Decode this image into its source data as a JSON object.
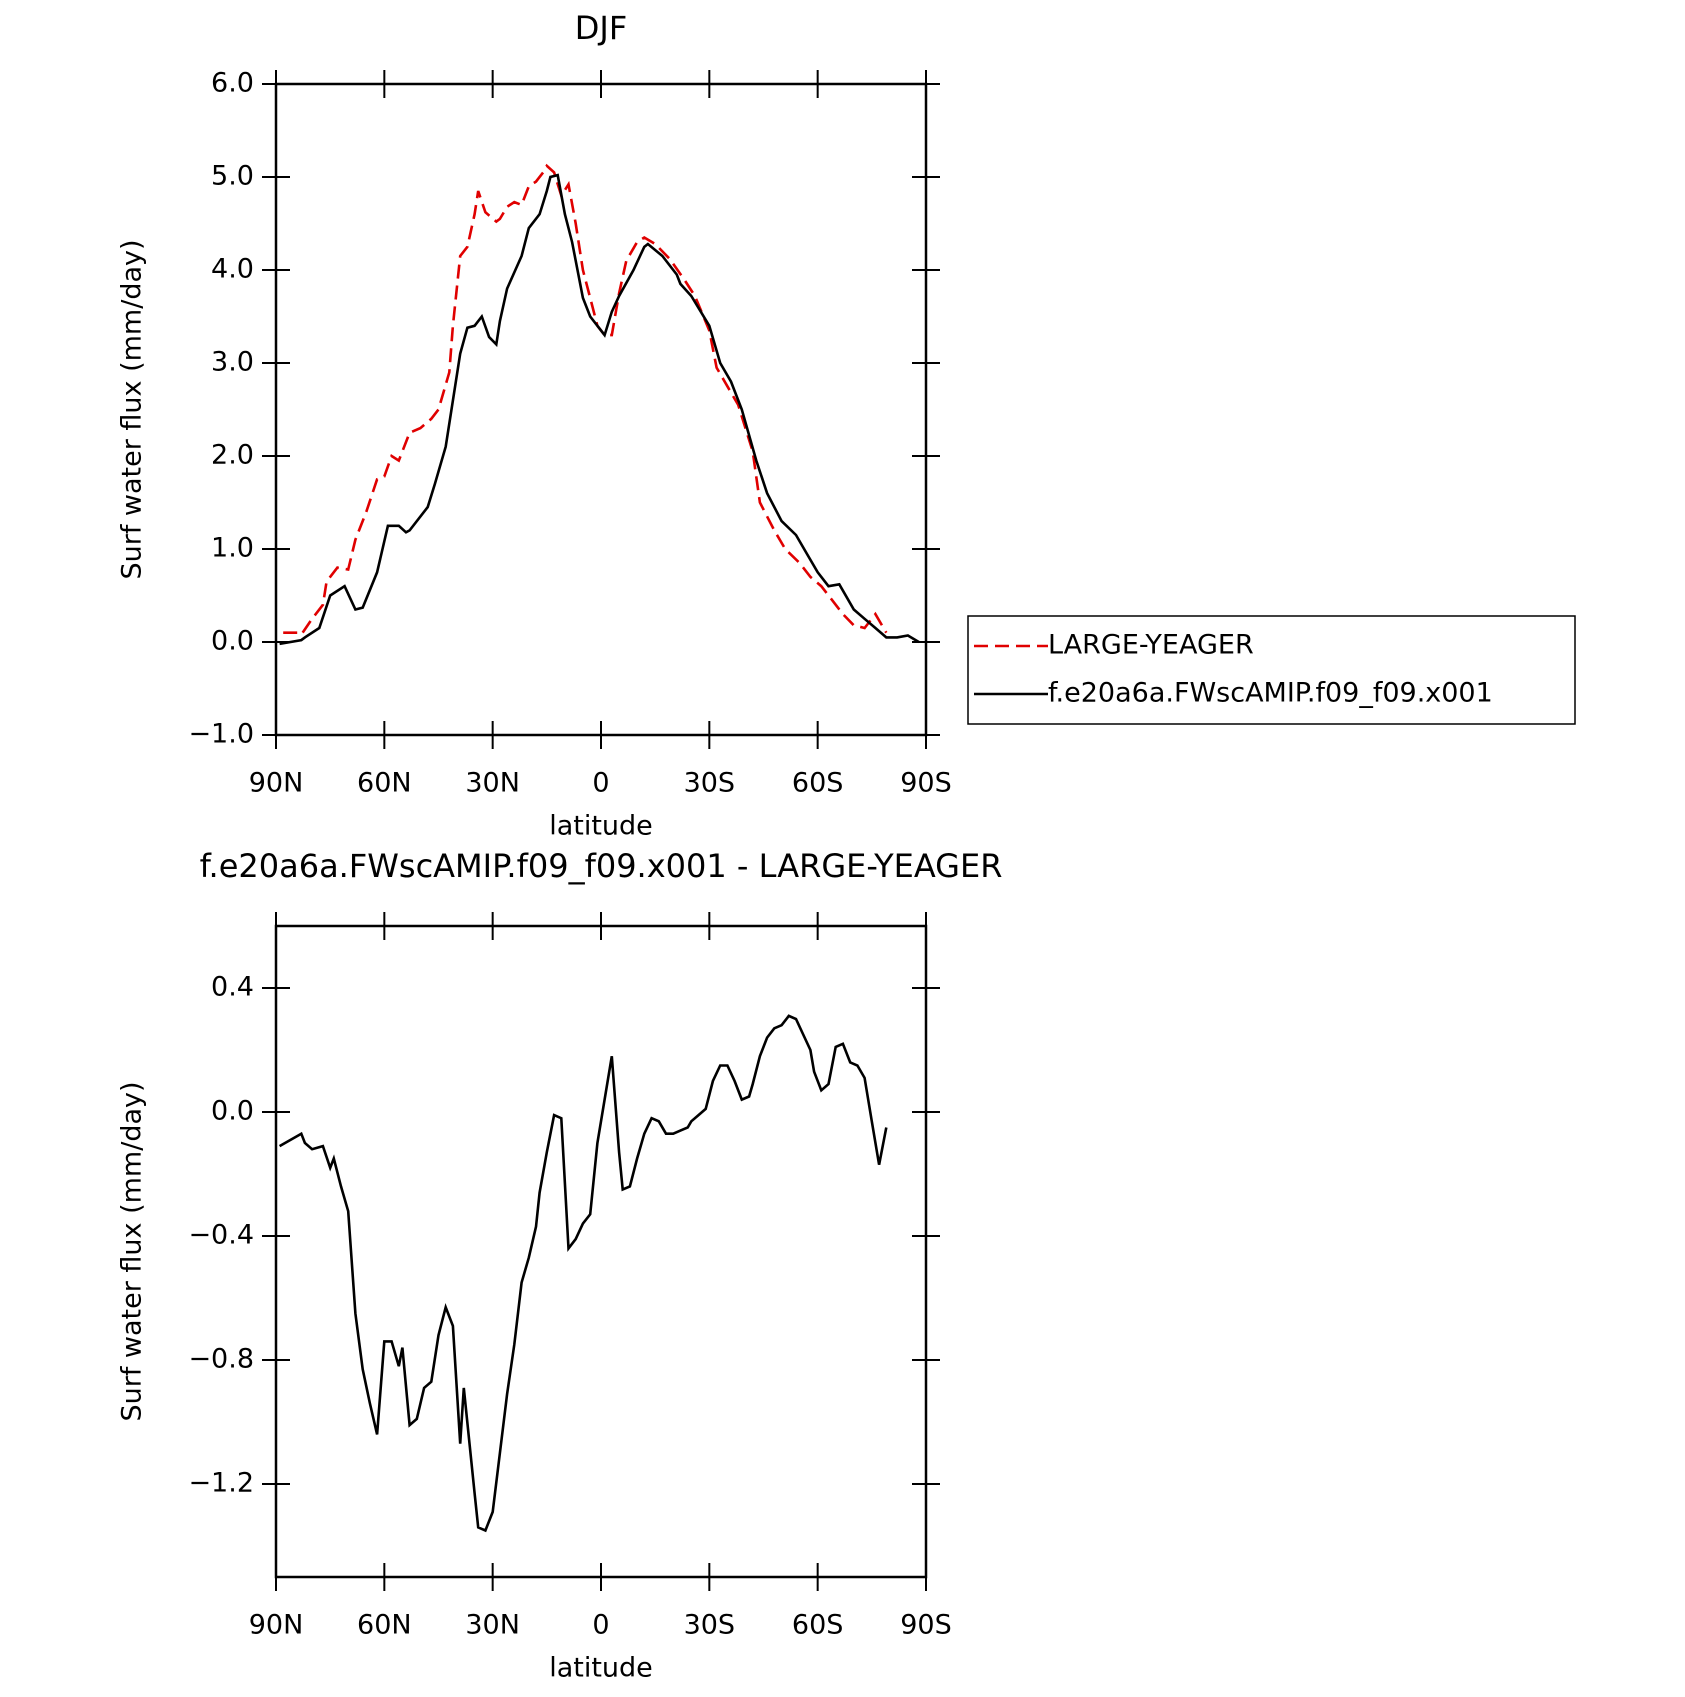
{
  "chart_data": [
    {
      "type": "line",
      "title": "DJF",
      "xlabel": "latitude",
      "ylabel": "Surf water flux (mm/day)",
      "xlim": [
        90,
        -90
      ],
      "xticks": [
        {
          "value": 90,
          "label": "90N"
        },
        {
          "value": 60,
          "label": "60N"
        },
        {
          "value": 30,
          "label": "30N"
        },
        0,
        {
          "value": -30,
          "label": "30S"
        },
        {
          "value": -60,
          "label": "60S"
        },
        {
          "value": -90,
          "label": "90S"
        }
      ],
      "ylim": [
        -1,
        6
      ],
      "yticks": [
        {
          "value": -1,
          "label": "−1.0"
        },
        {
          "value": 0,
          "label": "0.0"
        },
        {
          "value": 1,
          "label": "1.0"
        },
        {
          "value": 2,
          "label": "2.0"
        },
        {
          "value": 3,
          "label": "3.0"
        },
        {
          "value": 4,
          "label": "4.0"
        },
        {
          "value": 5,
          "label": "5.0"
        },
        {
          "value": 6,
          "label": "6.0"
        }
      ],
      "legend": "right",
      "series": [
        {
          "name": "LARGE-YEAGER",
          "color": "#e00000",
          "dash": true,
          "x": [
            88,
            84,
            83,
            80,
            77,
            76,
            73,
            70,
            68,
            65,
            62,
            60,
            58,
            56,
            53,
            50,
            47,
            45,
            42,
            41,
            39,
            37,
            35,
            34,
            32,
            29,
            28,
            26,
            24,
            22,
            20,
            18,
            16,
            15,
            13,
            11,
            9,
            7,
            5,
            3,
            1,
            -1,
            -3,
            -5,
            -7,
            -10,
            -12,
            -15,
            -19,
            -23,
            -26,
            -30,
            -32,
            -35,
            -38,
            -42,
            -44,
            -48,
            -51,
            -55,
            -58,
            -61,
            -64,
            -67,
            -70,
            -73,
            -76,
            -79
          ],
          "values": [
            0.1,
            0.1,
            0.08,
            0.25,
            0.4,
            0.65,
            0.8,
            0.78,
            1.1,
            1.4,
            1.75,
            1.78,
            2.0,
            1.95,
            2.25,
            2.3,
            2.4,
            2.5,
            2.9,
            3.4,
            4.15,
            4.25,
            4.6,
            4.85,
            4.62,
            4.52,
            4.55,
            4.68,
            4.73,
            4.7,
            4.9,
            4.95,
            5.05,
            5.12,
            5.05,
            4.8,
            4.92,
            4.5,
            4.0,
            3.7,
            3.4,
            3.3,
            3.3,
            3.75,
            4.1,
            4.3,
            4.35,
            4.28,
            4.12,
            3.9,
            3.72,
            3.35,
            2.95,
            2.75,
            2.55,
            2.05,
            1.5,
            1.2,
            1.0,
            0.85,
            0.7,
            0.6,
            0.45,
            0.3,
            0.18,
            0.15,
            0.3,
            0.1
          ]
        },
        {
          "name": "f.e20a6a.FWscAMIP.f09_f09.x001",
          "color": "#000000",
          "dash": false,
          "x": [
            89,
            83,
            82,
            78,
            75,
            71,
            68,
            66,
            62,
            59,
            56,
            54,
            53,
            48,
            46,
            43,
            39,
            37,
            35,
            33,
            31,
            29,
            28,
            26,
            22,
            20,
            17,
            15,
            14,
            12,
            10,
            8,
            5,
            3,
            1,
            -1,
            -3,
            -5,
            -9,
            -12,
            -13,
            -17,
            -21,
            -22,
            -25,
            -30,
            -33,
            -36,
            -39,
            -43,
            -46,
            -50,
            -54,
            -57,
            -60,
            -63,
            -66,
            -70,
            -73,
            -76,
            -79,
            -82,
            -85,
            -88
          ],
          "values": [
            -0.02,
            0.02,
            0.05,
            0.15,
            0.5,
            0.6,
            0.35,
            0.37,
            0.75,
            1.25,
            1.25,
            1.18,
            1.2,
            1.45,
            1.7,
            2.1,
            3.1,
            3.38,
            3.4,
            3.5,
            3.28,
            3.2,
            3.45,
            3.8,
            4.15,
            4.45,
            4.6,
            4.85,
            5.0,
            5.02,
            4.6,
            4.3,
            3.7,
            3.5,
            3.4,
            3.3,
            3.55,
            3.72,
            4.0,
            4.25,
            4.28,
            4.15,
            3.95,
            3.85,
            3.72,
            3.4,
            3.0,
            2.8,
            2.5,
            1.95,
            1.6,
            1.3,
            1.15,
            0.95,
            0.75,
            0.6,
            0.62,
            0.35,
            0.25,
            0.15,
            0.05,
            0.05,
            0.07,
            0.0
          ]
        }
      ]
    },
    {
      "type": "line",
      "title": "f.e20a6a.FWscAMIP.f09_f09.x001 - LARGE-YEAGER",
      "xlabel": "latitude",
      "ylabel": "Surf water flux (mm/day)",
      "xlim": [
        90,
        -90
      ],
      "xticks": [
        {
          "value": 90,
          "label": "90N"
        },
        {
          "value": 60,
          "label": "60N"
        },
        {
          "value": 30,
          "label": "30N"
        },
        0,
        {
          "value": -30,
          "label": "30S"
        },
        {
          "value": -60,
          "label": "60S"
        },
        {
          "value": -90,
          "label": "90S"
        }
      ],
      "ylim": [
        -1.5,
        0.6
      ],
      "yticks": [
        {
          "value": -1.2,
          "label": "−1.2"
        },
        {
          "value": -0.8,
          "label": "−0.8"
        },
        {
          "value": -0.4,
          "label": "−0.4"
        },
        {
          "value": 0,
          "label": "0.0"
        },
        0.4
      ],
      "series": [
        {
          "color": "#000000",
          "dash": false,
          "x": [
            89,
            83,
            82,
            80,
            77,
            75,
            74,
            72,
            70,
            68,
            66,
            64,
            62,
            60,
            58,
            56,
            55,
            53,
            51,
            49,
            47,
            45,
            43,
            41,
            39,
            38,
            35,
            34,
            32,
            30,
            28,
            26,
            24,
            22,
            20,
            18,
            17,
            15,
            13,
            11,
            9,
            7,
            5,
            3,
            1,
            -1,
            -3,
            -5,
            -6,
            -8,
            -10,
            -12,
            -14,
            -16,
            -18,
            -20,
            -22,
            -24,
            -25,
            -27,
            -29,
            -31,
            -33,
            -35,
            -37,
            -39,
            -41,
            -42,
            -44,
            -46,
            -48,
            -50,
            -52,
            -54,
            -56,
            -58,
            -59,
            -61,
            -63,
            -65,
            -67,
            -69,
            -71,
            -73,
            -75,
            -77,
            -79
          ],
          "values": [
            -0.11,
            -0.07,
            -0.1,
            -0.12,
            -0.11,
            -0.18,
            -0.15,
            -0.24,
            -0.32,
            -0.65,
            -0.83,
            -0.94,
            -1.04,
            -0.74,
            -0.74,
            -0.82,
            -0.76,
            -1.01,
            -0.99,
            -0.89,
            -0.87,
            -0.72,
            -0.63,
            -0.69,
            -1.07,
            -0.89,
            -1.23,
            -1.34,
            -1.35,
            -1.29,
            -1.1,
            -0.91,
            -0.75,
            -0.55,
            -0.47,
            -0.37,
            -0.26,
            -0.13,
            -0.01,
            -0.02,
            -0.44,
            -0.41,
            -0.36,
            -0.33,
            -0.1,
            0.04,
            0.18,
            -0.13,
            -0.25,
            -0.24,
            -0.15,
            -0.07,
            -0.02,
            -0.03,
            -0.07,
            -0.07,
            -0.06,
            -0.05,
            -0.03,
            -0.01,
            0.01,
            0.1,
            0.15,
            0.15,
            0.1,
            0.04,
            0.05,
            0.09,
            0.18,
            0.24,
            0.27,
            0.28,
            0.31,
            0.3,
            0.25,
            0.2,
            0.13,
            0.07,
            0.09,
            0.21,
            0.22,
            0.16,
            0.15,
            0.11,
            -0.03,
            -0.17,
            -0.05
          ]
        }
      ]
    }
  ]
}
